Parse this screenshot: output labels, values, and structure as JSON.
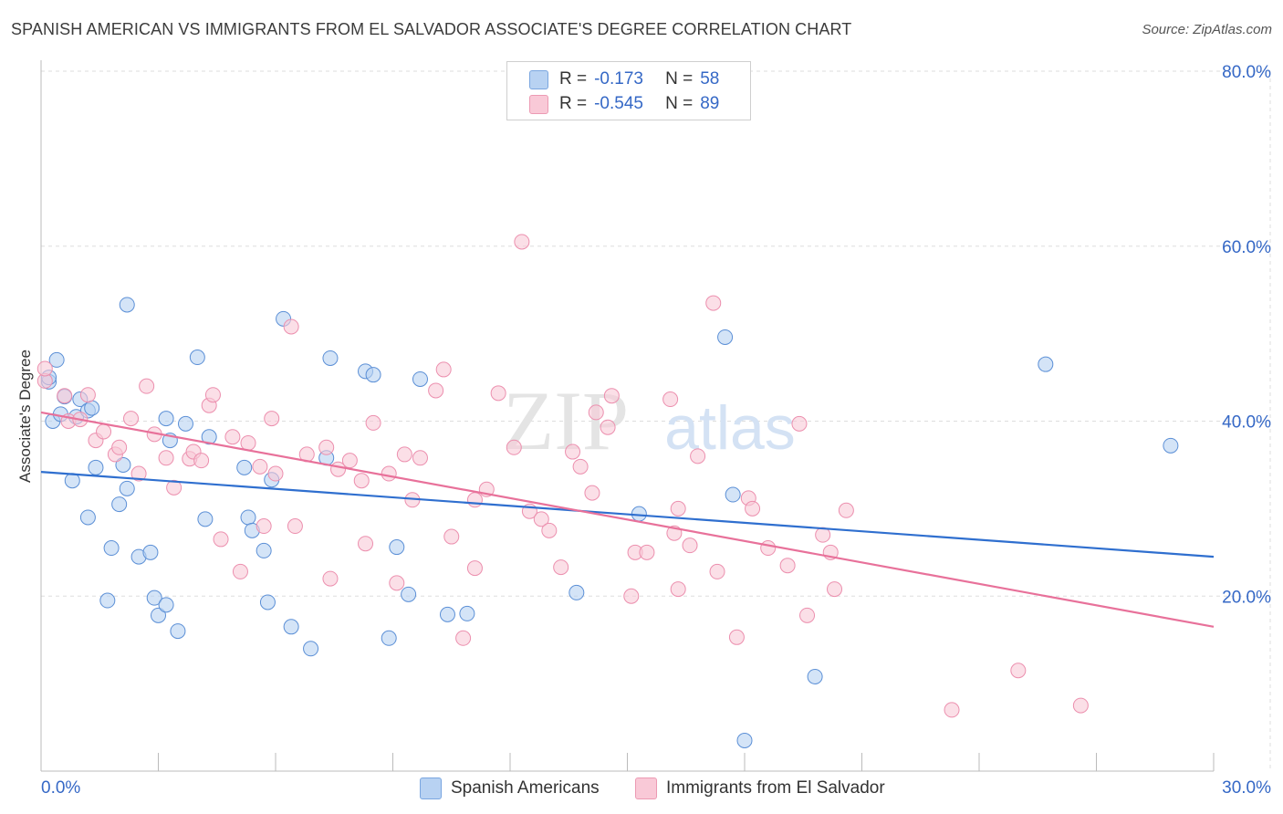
{
  "title": "SPANISH AMERICAN VS IMMIGRANTS FROM EL SALVADOR ASSOCIATE'S DEGREE CORRELATION CHART",
  "source": "Source: ZipAtlas.com",
  "watermark": "ZIPatlas",
  "legend": {
    "r_label": "R =",
    "n_label": "N =",
    "rows": [
      {
        "r": "-0.173",
        "n": "58",
        "fill": "#b8d2f2",
        "stroke": "#7aa6e0"
      },
      {
        "r": "-0.545",
        "n": "89",
        "fill": "#f9c9d7",
        "stroke": "#ec9ab3"
      }
    ]
  },
  "chart_data": {
    "type": "scatter",
    "title": "SPANISH AMERICAN VS IMMIGRANTS FROM EL SALVADOR ASSOCIATE'S DEGREE CORRELATION CHART",
    "xlabel": "",
    "ylabel": "Associate's Degree",
    "xlim": [
      0,
      30
    ],
    "ylim": [
      0,
      80
    ],
    "x_tick_labels": [
      "0.0%",
      "30.0%"
    ],
    "y_ticks": [
      20,
      40,
      60,
      80
    ],
    "y_tick_labels": [
      "20.0%",
      "40.0%",
      "60.0%",
      "80.0%"
    ],
    "grid": true,
    "legend_position": "bottom",
    "series": [
      {
        "name": "Spanish Americans",
        "color": "#5b8fd6",
        "fill": "#b8d2f2",
        "trend": {
          "x0": 0,
          "y0": 34.2,
          "x1": 30,
          "y1": 24.5,
          "color": "#2f6fcf"
        },
        "points": [
          [
            0.2,
            44.5
          ],
          [
            0.2,
            45.0
          ],
          [
            0.3,
            40.0
          ],
          [
            0.4,
            47.0
          ],
          [
            0.5,
            40.8
          ],
          [
            0.6,
            42.8
          ],
          [
            0.8,
            33.2
          ],
          [
            0.9,
            40.5
          ],
          [
            1.0,
            42.5
          ],
          [
            1.2,
            41.2
          ],
          [
            1.3,
            41.5
          ],
          [
            1.2,
            29.0
          ],
          [
            1.4,
            34.7
          ],
          [
            1.7,
            19.5
          ],
          [
            1.8,
            25.5
          ],
          [
            2.0,
            30.5
          ],
          [
            2.1,
            35.0
          ],
          [
            2.2,
            32.3
          ],
          [
            2.2,
            53.3
          ],
          [
            2.5,
            24.5
          ],
          [
            2.8,
            25.0
          ],
          [
            2.9,
            19.8
          ],
          [
            3.0,
            17.8
          ],
          [
            3.2,
            19.0
          ],
          [
            3.2,
            40.3
          ],
          [
            3.3,
            37.8
          ],
          [
            3.5,
            16.0
          ],
          [
            3.7,
            39.7
          ],
          [
            4.0,
            47.3
          ],
          [
            4.2,
            28.8
          ],
          [
            4.3,
            38.2
          ],
          [
            5.2,
            34.7
          ],
          [
            5.3,
            29.0
          ],
          [
            5.4,
            27.5
          ],
          [
            5.7,
            25.2
          ],
          [
            5.8,
            19.3
          ],
          [
            5.9,
            33.3
          ],
          [
            6.2,
            51.7
          ],
          [
            6.4,
            16.5
          ],
          [
            6.9,
            14.0
          ],
          [
            7.3,
            35.8
          ],
          [
            7.4,
            47.2
          ],
          [
            8.3,
            45.7
          ],
          [
            8.5,
            45.3
          ],
          [
            8.9,
            15.2
          ],
          [
            9.1,
            25.6
          ],
          [
            9.4,
            20.2
          ],
          [
            9.7,
            44.8
          ],
          [
            10.4,
            17.9
          ],
          [
            10.9,
            18.0
          ],
          [
            13.7,
            20.4
          ],
          [
            15.3,
            29.4
          ],
          [
            17.5,
            49.6
          ],
          [
            17.7,
            31.6
          ],
          [
            19.8,
            10.8
          ],
          [
            25.7,
            46.5
          ],
          [
            28.9,
            37.2
          ],
          [
            18.0,
            3.5
          ]
        ]
      },
      {
        "name": "Immigrants from El Salvador",
        "color": "#ec8fae",
        "fill": "#f9c9d7",
        "trend": {
          "x0": 0,
          "y0": 41.0,
          "x1": 30,
          "y1": 16.5,
          "color": "#e8719a"
        },
        "points": [
          [
            0.1,
            44.6
          ],
          [
            0.1,
            46.0
          ],
          [
            0.6,
            42.9
          ],
          [
            0.7,
            40.0
          ],
          [
            1.0,
            40.2
          ],
          [
            1.2,
            43.0
          ],
          [
            1.4,
            37.8
          ],
          [
            1.6,
            38.8
          ],
          [
            1.9,
            36.2
          ],
          [
            2.0,
            37.0
          ],
          [
            2.3,
            40.3
          ],
          [
            2.5,
            34.0
          ],
          [
            2.7,
            44.0
          ],
          [
            2.9,
            38.5
          ],
          [
            3.2,
            35.8
          ],
          [
            3.4,
            32.4
          ],
          [
            3.8,
            35.7
          ],
          [
            3.9,
            36.5
          ],
          [
            4.1,
            35.5
          ],
          [
            4.3,
            41.8
          ],
          [
            4.4,
            43.0
          ],
          [
            4.6,
            26.5
          ],
          [
            4.9,
            38.2
          ],
          [
            5.1,
            22.8
          ],
          [
            5.3,
            37.5
          ],
          [
            5.6,
            34.8
          ],
          [
            5.7,
            28.0
          ],
          [
            5.9,
            40.3
          ],
          [
            6.0,
            34.0
          ],
          [
            6.4,
            50.8
          ],
          [
            6.5,
            28.0
          ],
          [
            6.8,
            36.2
          ],
          [
            7.3,
            37.0
          ],
          [
            7.6,
            34.5
          ],
          [
            7.4,
            22.0
          ],
          [
            7.9,
            35.5
          ],
          [
            8.2,
            33.2
          ],
          [
            8.3,
            26.0
          ],
          [
            8.5,
            39.8
          ],
          [
            8.9,
            34.0
          ],
          [
            9.1,
            21.5
          ],
          [
            9.3,
            36.2
          ],
          [
            9.5,
            31.0
          ],
          [
            9.7,
            35.8
          ],
          [
            10.1,
            43.5
          ],
          [
            10.3,
            45.9
          ],
          [
            10.5,
            26.8
          ],
          [
            10.8,
            15.2
          ],
          [
            11.1,
            23.2
          ],
          [
            11.4,
            32.2
          ],
          [
            11.7,
            43.2
          ],
          [
            12.1,
            37.0
          ],
          [
            12.3,
            60.5
          ],
          [
            12.5,
            29.7
          ],
          [
            12.8,
            28.8
          ],
          [
            13.0,
            27.5
          ],
          [
            13.3,
            23.3
          ],
          [
            13.6,
            36.5
          ],
          [
            13.8,
            34.8
          ],
          [
            14.1,
            31.8
          ],
          [
            14.5,
            39.3
          ],
          [
            14.6,
            42.9
          ],
          [
            15.1,
            20.0
          ],
          [
            15.2,
            25.0
          ],
          [
            15.5,
            25.0
          ],
          [
            16.1,
            42.5
          ],
          [
            16.2,
            27.2
          ],
          [
            16.3,
            20.8
          ],
          [
            16.6,
            25.8
          ],
          [
            16.8,
            36.0
          ],
          [
            17.2,
            53.5
          ],
          [
            17.3,
            22.8
          ],
          [
            17.8,
            15.3
          ],
          [
            18.1,
            31.2
          ],
          [
            18.2,
            30.0
          ],
          [
            18.6,
            25.5
          ],
          [
            19.1,
            23.5
          ],
          [
            19.4,
            39.7
          ],
          [
            19.6,
            17.8
          ],
          [
            20.0,
            27.0
          ],
          [
            20.3,
            20.8
          ],
          [
            20.2,
            25.0
          ],
          [
            20.6,
            29.8
          ],
          [
            16.3,
            30.0
          ],
          [
            25.0,
            11.5
          ],
          [
            26.6,
            7.5
          ],
          [
            23.3,
            7.0
          ],
          [
            14.2,
            41.0
          ],
          [
            11.1,
            31.0
          ]
        ]
      }
    ]
  }
}
